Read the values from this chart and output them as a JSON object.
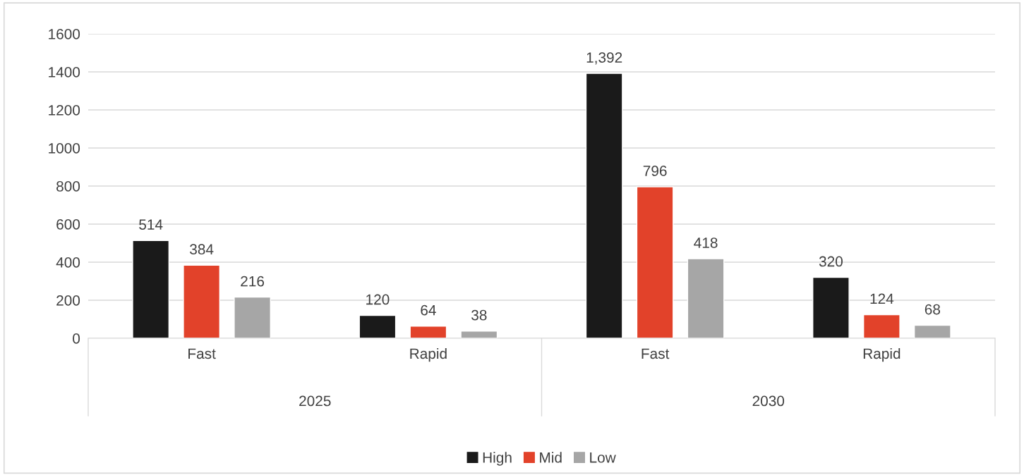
{
  "chart_data": {
    "type": "bar",
    "categories": [
      "Fast",
      "Rapid",
      "Fast",
      "Rapid"
    ],
    "series": [
      {
        "name": "High",
        "color": "#1a1a1a",
        "values": [
          514,
          120,
          1392,
          320
        ],
        "value_labels": [
          "514",
          "120",
          "1,392",
          "320"
        ]
      },
      {
        "name": "Mid",
        "color": "#e2422a",
        "values": [
          384,
          64,
          796,
          124
        ],
        "value_labels": [
          "384",
          "64",
          "796",
          "124"
        ]
      },
      {
        "name": "Low",
        "color": "#a6a6a6",
        "values": [
          216,
          38,
          418,
          68
        ],
        "value_labels": [
          "216",
          "38",
          "418",
          "68"
        ]
      }
    ],
    "annotations": [
      "2025",
      "2030"
    ],
    "ylim": [
      0,
      1600
    ],
    "yticks": [
      0,
      200,
      400,
      600,
      800,
      1000,
      1200,
      1400,
      1600
    ],
    "grid": "y",
    "legend": "bottom"
  }
}
